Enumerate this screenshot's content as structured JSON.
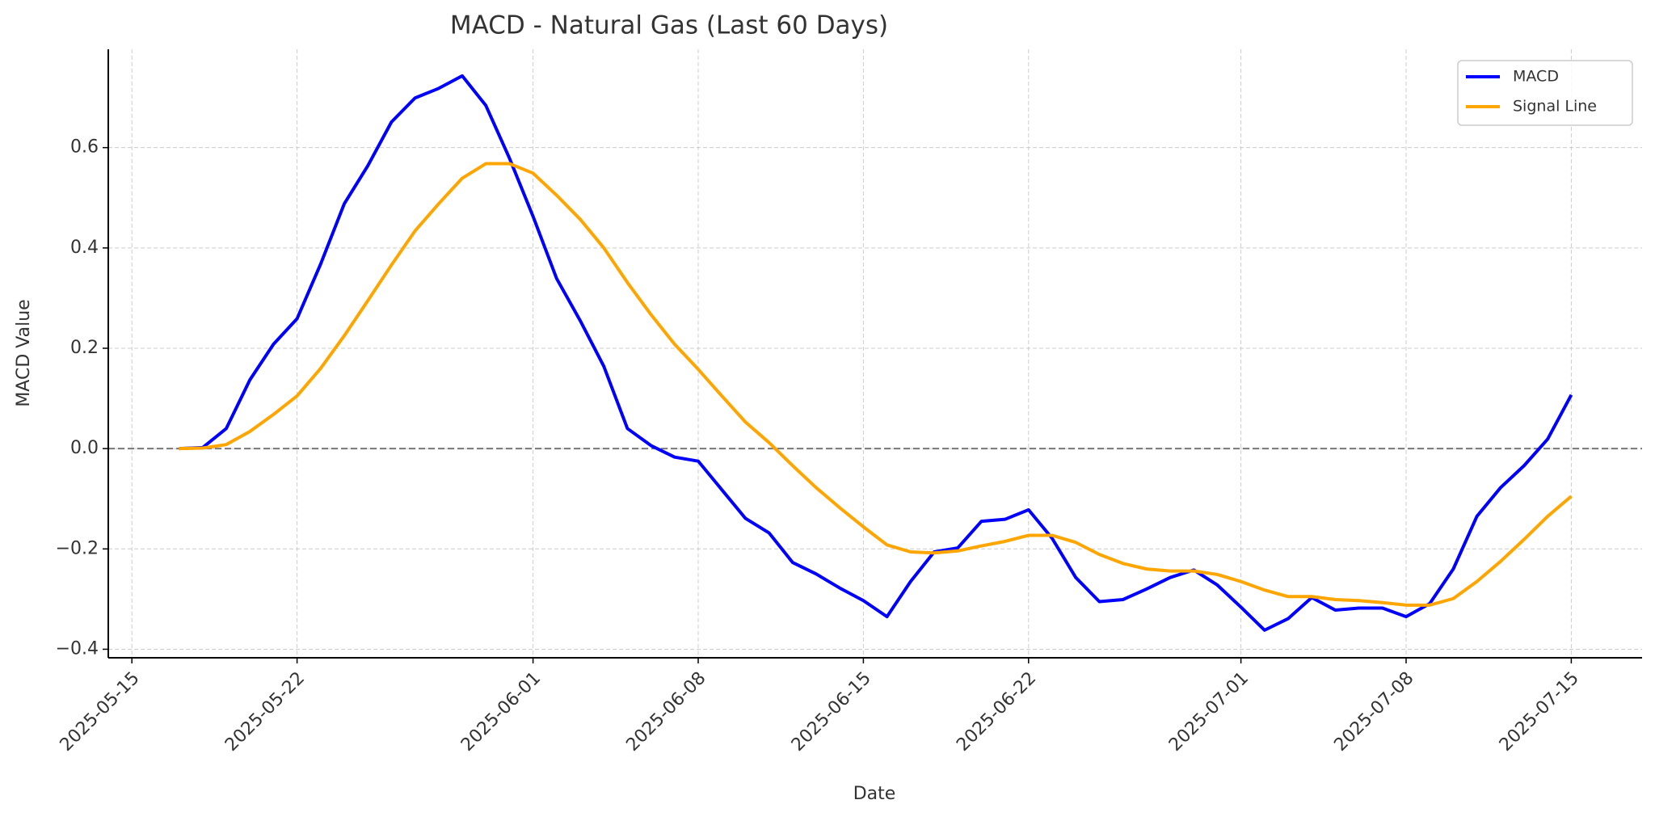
{
  "chart_data": {
    "type": "line",
    "title": "MACD - Natural Gas (Last 60 Days)",
    "x_label": "Date",
    "y_label": "MACD Value",
    "x": [
      "2025-05-17",
      "2025-05-18",
      "2025-05-19",
      "2025-05-20",
      "2025-05-21",
      "2025-05-22",
      "2025-05-23",
      "2025-05-24",
      "2025-05-25",
      "2025-05-26",
      "2025-05-27",
      "2025-05-28",
      "2025-05-29",
      "2025-05-30",
      "2025-05-31",
      "2025-06-01",
      "2025-06-02",
      "2025-06-03",
      "2025-06-04",
      "2025-06-05",
      "2025-06-06",
      "2025-06-07",
      "2025-06-08",
      "2025-06-09",
      "2025-06-10",
      "2025-06-11",
      "2025-06-12",
      "2025-06-13",
      "2025-06-14",
      "2025-06-15",
      "2025-06-16",
      "2025-06-17",
      "2025-06-18",
      "2025-06-19",
      "2025-06-20",
      "2025-06-21",
      "2025-06-22",
      "2025-06-23",
      "2025-06-24",
      "2025-06-25",
      "2025-06-26",
      "2025-06-27",
      "2025-06-28",
      "2025-06-29",
      "2025-06-30",
      "2025-07-01",
      "2025-07-02",
      "2025-07-03",
      "2025-07-04",
      "2025-07-05",
      "2025-07-06",
      "2025-07-07",
      "2025-07-08",
      "2025-07-09",
      "2025-07-10",
      "2025-07-11",
      "2025-07-12",
      "2025-07-13",
      "2025-07-14",
      "2025-07-15"
    ],
    "series": [
      {
        "name": "MACD",
        "color": "#0000ff",
        "values": [
          0.0,
          0.002,
          0.04,
          0.137,
          0.208,
          0.259,
          0.368,
          0.488,
          0.564,
          0.651,
          0.699,
          0.718,
          0.743,
          0.684,
          0.579,
          0.463,
          0.339,
          0.255,
          0.164,
          0.04,
          0.006,
          -0.017,
          -0.025,
          -0.082,
          -0.139,
          -0.168,
          -0.227,
          -0.25,
          -0.278,
          -0.303,
          -0.335,
          -0.265,
          -0.206,
          -0.198,
          -0.145,
          -0.141,
          -0.122,
          -0.179,
          -0.257,
          -0.305,
          -0.301,
          -0.28,
          -0.257,
          -0.242,
          -0.272,
          -0.316,
          -0.362,
          -0.339,
          -0.297,
          -0.322,
          -0.318,
          -0.318,
          -0.335,
          -0.309,
          -0.24,
          -0.135,
          -0.078,
          -0.034,
          0.019,
          0.107
        ]
      },
      {
        "name": "Signal Line",
        "color": "#ffa500",
        "values": [
          0.0,
          0.001,
          0.008,
          0.034,
          0.068,
          0.105,
          0.16,
          0.225,
          0.295,
          0.366,
          0.434,
          0.488,
          0.539,
          0.568,
          0.568,
          0.549,
          0.505,
          0.457,
          0.4,
          0.331,
          0.267,
          0.208,
          0.158,
          0.105,
          0.053,
          0.012,
          -0.034,
          -0.078,
          -0.118,
          -0.156,
          -0.192,
          -0.206,
          -0.208,
          -0.204,
          -0.194,
          -0.185,
          -0.173,
          -0.173,
          -0.187,
          -0.211,
          -0.229,
          -0.24,
          -0.244,
          -0.244,
          -0.251,
          -0.265,
          -0.282,
          -0.295,
          -0.295,
          -0.301,
          -0.303,
          -0.307,
          -0.312,
          -0.312,
          -0.299,
          -0.265,
          -0.225,
          -0.181,
          -0.135,
          -0.095
        ]
      }
    ],
    "xlim": [
      "2025-05-14",
      "2025-07-18"
    ],
    "xticks": [
      "2025-05-15",
      "2025-05-22",
      "2025-06-01",
      "2025-06-08",
      "2025-06-15",
      "2025-06-22",
      "2025-07-01",
      "2025-07-08",
      "2025-07-15"
    ],
    "ylim": [
      -0.417,
      0.796
    ],
    "yticks": [
      {
        "value": -0.4,
        "label": "−0.4"
      },
      {
        "value": -0.2,
        "label": "−0.2"
      },
      {
        "value": 0,
        "label": "0.0"
      },
      {
        "value": 0.2,
        "label": "0.2"
      },
      {
        "value": 0.4,
        "label": "0.4"
      },
      {
        "value": 0.6,
        "label": "0.6"
      }
    ],
    "hline": 0,
    "grid": true,
    "legend": "upper right"
  }
}
